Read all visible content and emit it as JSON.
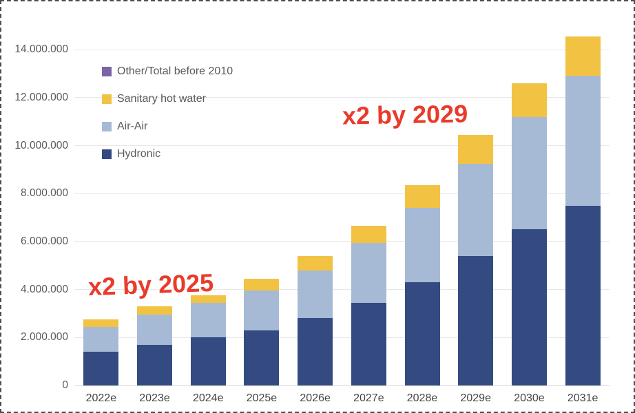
{
  "chart_data": {
    "type": "bar",
    "stacked": true,
    "title": "",
    "xlabel": "",
    "ylabel": "",
    "categories": [
      "2022e",
      "2023e",
      "2024e",
      "2025e",
      "2026e",
      "2027e",
      "2028e",
      "2029e",
      "2030e",
      "2031e"
    ],
    "series": [
      {
        "name": "Hydronic",
        "color": "#334B80",
        "values": [
          1400000,
          1700000,
          2000000,
          2300000,
          2800000,
          3450000,
          4300000,
          5400000,
          6500000,
          7500000
        ]
      },
      {
        "name": "Air-Air",
        "color": "#A6BAD6",
        "values": [
          1050000,
          1250000,
          1450000,
          1650000,
          2000000,
          2500000,
          3100000,
          3850000,
          4700000,
          5400000
        ]
      },
      {
        "name": "Sanitary hot water",
        "color": "#F2C243",
        "values": [
          300000,
          350000,
          300000,
          500000,
          600000,
          700000,
          950000,
          1200000,
          1400000,
          1650000
        ]
      },
      {
        "name": "Other/Total before 2010",
        "color": "#7C64A5",
        "values": [
          0,
          0,
          0,
          0,
          0,
          0,
          0,
          0,
          0,
          0
        ]
      }
    ],
    "totals": [
      2750000,
      3300000,
      3750000,
      4450000,
      5400000,
      6650000,
      8350000,
      10450000,
      12600000,
      14550000
    ],
    "ylim": [
      0,
      14800000
    ],
    "ytick_values": [
      0,
      2000000,
      4000000,
      6000000,
      8000000,
      10000000,
      12000000,
      14000000
    ],
    "ytick_labels": [
      "0",
      "2.000.000",
      "4.000.000",
      "6.000.000",
      "8.000.000",
      "10.000.000",
      "12.000.000",
      "14.000.000"
    ],
    "grid": true,
    "legend": {
      "position": "inside-top-left",
      "entries": [
        {
          "label": "Other/Total before 2010",
          "color": "#7C64A5"
        },
        {
          "label": "Sanitary hot water",
          "color": "#F2C243"
        },
        {
          "label": "Air-Air",
          "color": "#A6BAD6"
        },
        {
          "label": "Hydronic",
          "color": "#334B80"
        }
      ]
    }
  },
  "annotations": [
    {
      "text": "x2 by 2025",
      "color": "#E93B2B"
    },
    {
      "text": "x2 by 2029",
      "color": "#E93B2B"
    }
  ]
}
